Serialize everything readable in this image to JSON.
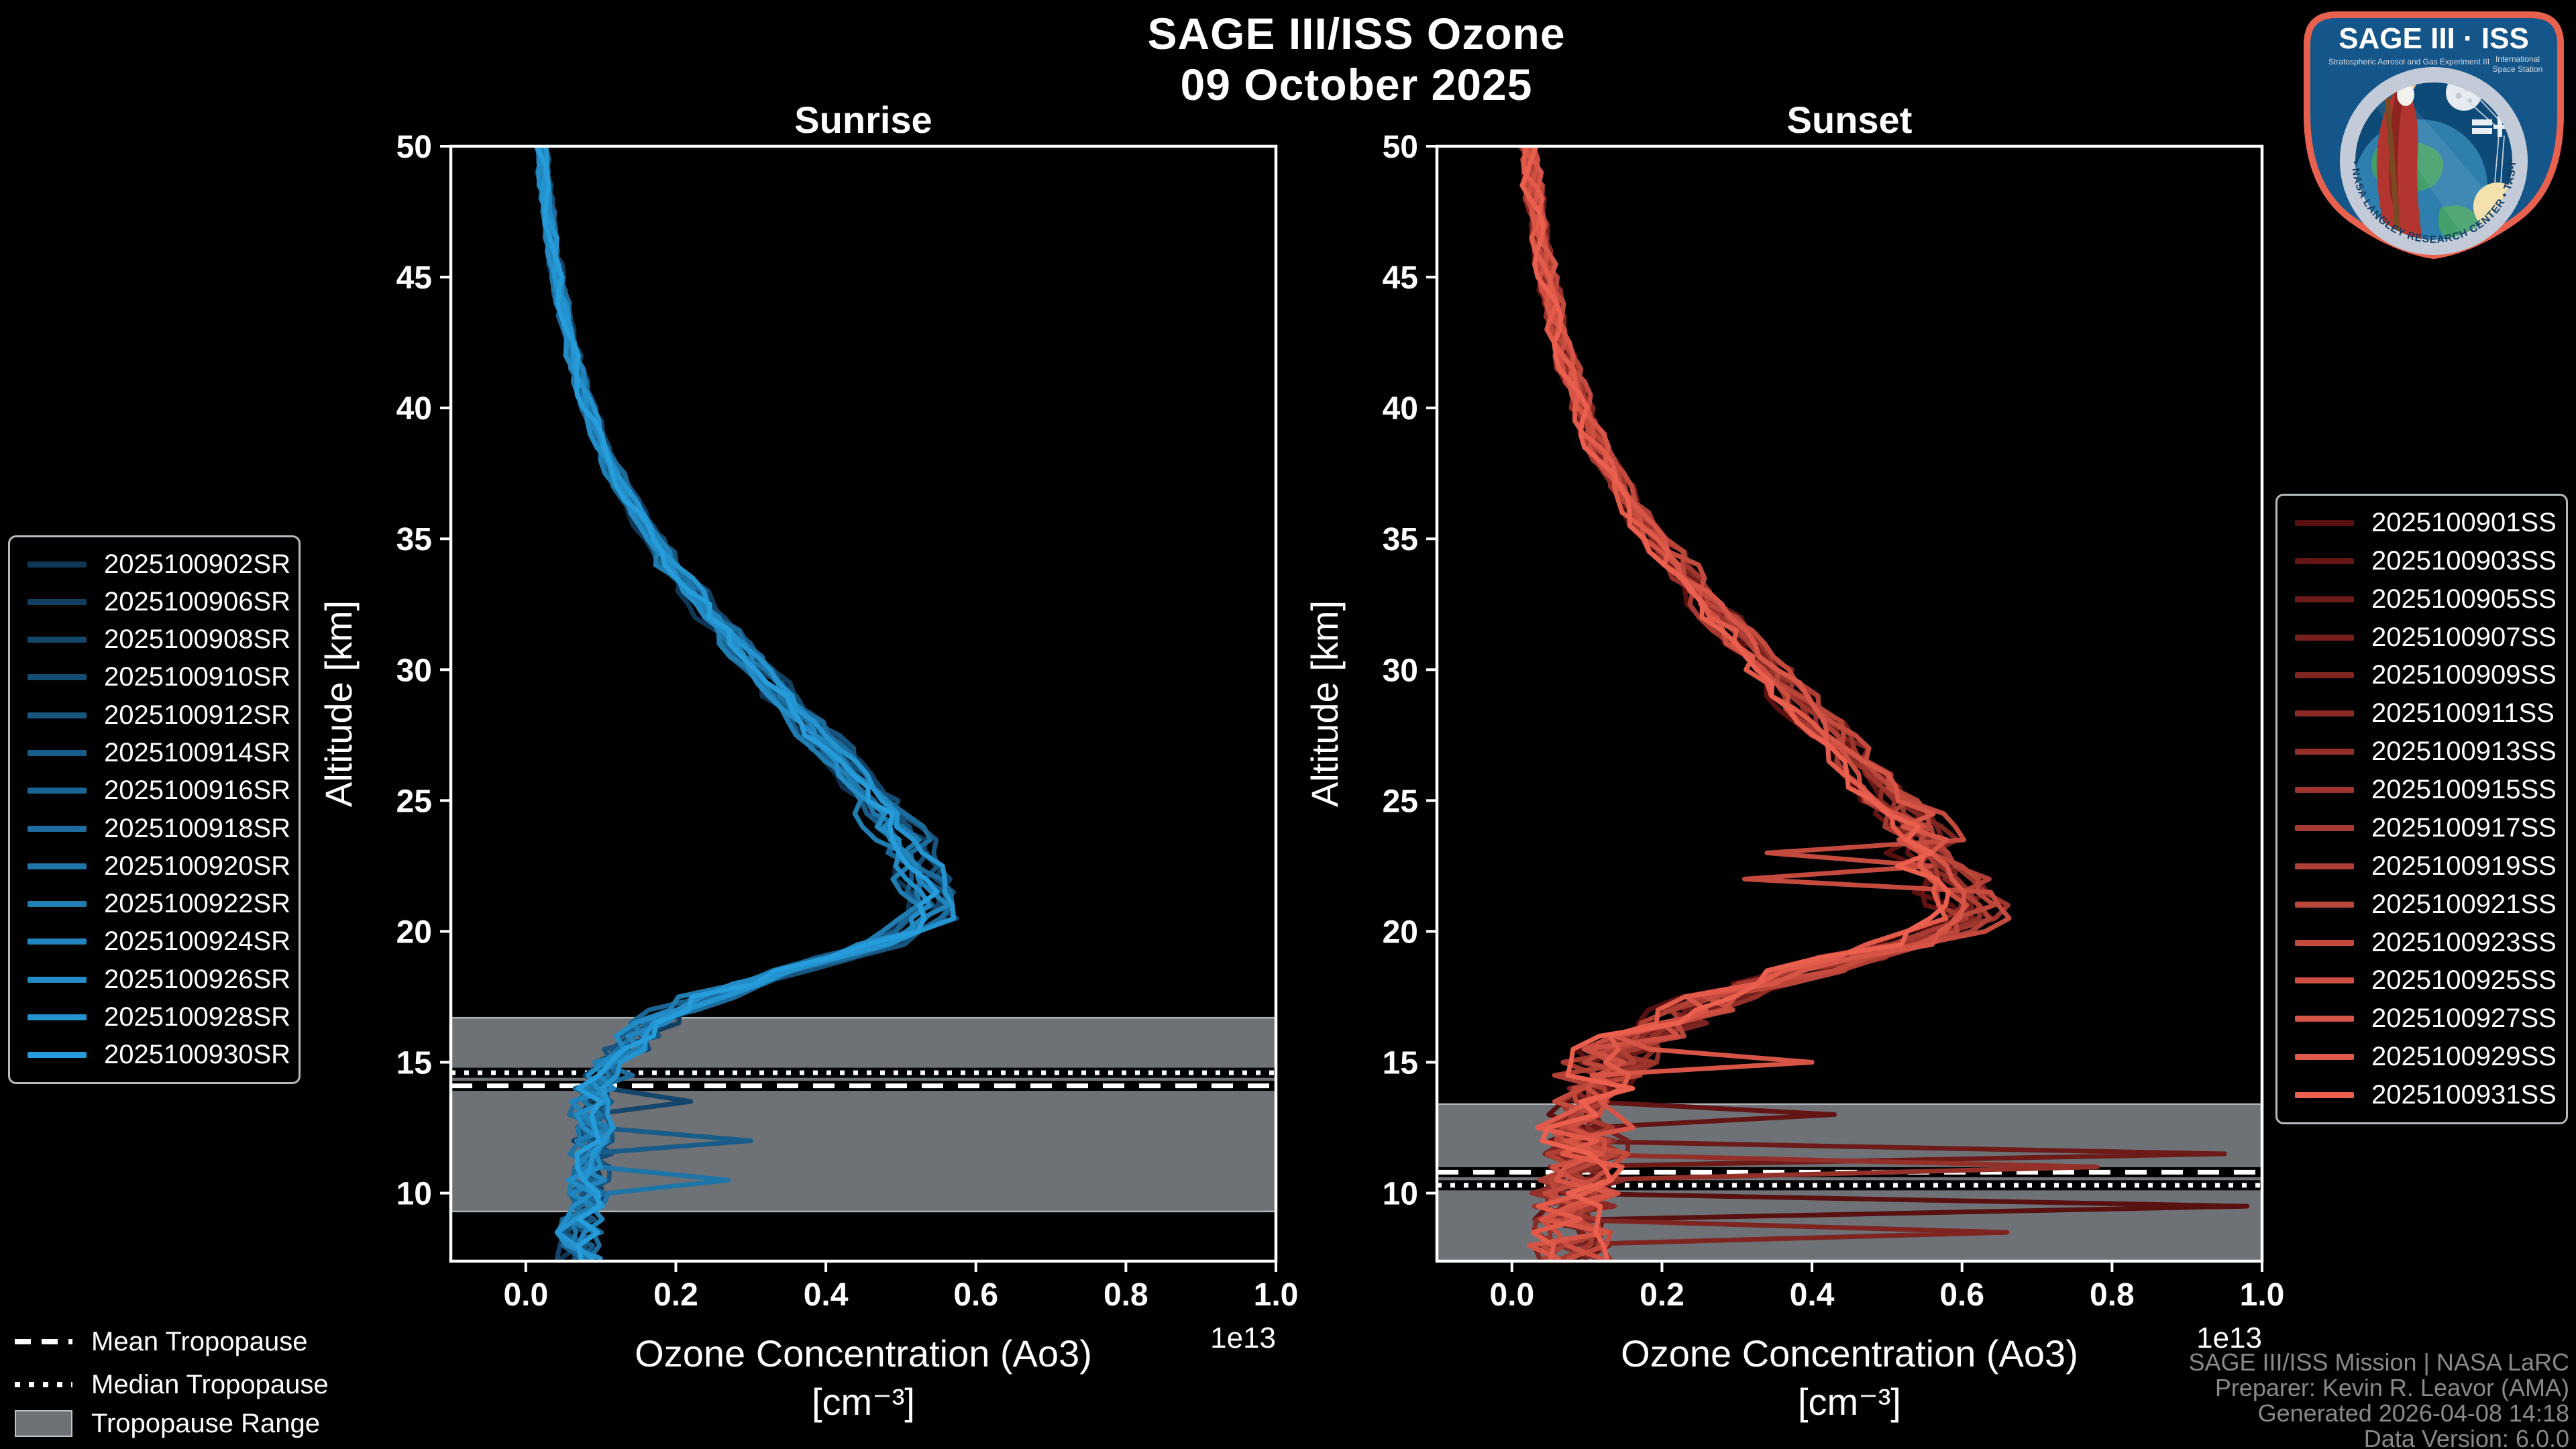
{
  "figure_title": {
    "line1": "SAGE III/ISS Ozone",
    "line2": "09 October 2025"
  },
  "axes": {
    "x_label": "Ozone Concentration (Ao3)",
    "x_unit": "[cm⁻³]",
    "offset_label": "1e13",
    "y_label": "Altitude [km]",
    "x_ticks": [
      0.0,
      0.2,
      0.4,
      0.6,
      0.8,
      1.0
    ],
    "y_ticks": [
      10,
      15,
      20,
      25,
      30,
      35,
      40,
      45,
      50
    ]
  },
  "tropopause_legend": {
    "mean": "Mean Tropopause",
    "median": "Median Tropopause",
    "range": "Tropopause Range"
  },
  "attribution": {
    "line1": "SAGE III/ISS Mission | NASA LaRC",
    "line2": "Preparer: Kevin R. Leavor (AMA)",
    "line3": "Generated 2026-04-08 14:18",
    "line4": "Data Version: 6.0.0"
  },
  "logo": {
    "title": "SAGE III · ISS",
    "subtitle_left": "Stratospheric Aerosol and Gas Experiment III",
    "subtitle_right_1": "International",
    "subtitle_right_2": "Space Station",
    "ring_text": "BALL • NASA LANGLEY RESEARCH CENTER • TAS-I • ESA",
    "border_color": "#e8614e",
    "background_color": "#15568a"
  },
  "style": {
    "background": "#000000",
    "text_color": "#ffffff",
    "band_color": "#6e7176",
    "band_edge_color": "#aeb2b8",
    "spine_color": "#ffffff"
  },
  "chart_data": [
    {
      "type": "line",
      "title": "Sunrise",
      "xlabel": "Ozone Concentration (Ao3) [cm⁻³]",
      "ylabel": "Altitude [km]",
      "x_offset_factor": "1e13",
      "xlim": [
        -0.1,
        1.0
      ],
      "ylim": [
        7.4,
        50
      ],
      "grid": false,
      "legend_position": "outside-left",
      "series": [
        {
          "name": "2025100902SR",
          "color": "#103656"
        },
        {
          "name": "2025100906SR",
          "color": "#123e60"
        },
        {
          "name": "2025100908SR",
          "color": "#13466a"
        },
        {
          "name": "2025100910SR",
          "color": "#154e74"
        },
        {
          "name": "2025100912SR",
          "color": "#17557f"
        },
        {
          "name": "2025100914SR",
          "color": "#185d89"
        },
        {
          "name": "2025100916SR",
          "color": "#1a6593"
        },
        {
          "name": "2025100918SR",
          "color": "#1c6d9d"
        },
        {
          "name": "2025100920SR",
          "color": "#1e75a7"
        },
        {
          "name": "2025100922SR",
          "color": "#1f7db1"
        },
        {
          "name": "2025100924SR",
          "color": "#2184bc"
        },
        {
          "name": "2025100926SR",
          "color": "#238cc6"
        },
        {
          "name": "2025100928SR",
          "color": "#2494d0"
        },
        {
          "name": "2025100930SR",
          "color": "#269cda"
        }
      ],
      "base_profile": {
        "altitude_km": [
          50,
          48,
          46,
          44,
          42,
          40,
          38,
          36,
          34,
          32,
          30,
          28,
          26,
          25,
          24,
          23,
          22,
          21.5,
          21,
          20.5,
          20,
          19.5,
          19,
          18.5,
          18,
          17.5,
          17,
          16.5,
          16,
          15.5,
          15,
          14.5,
          14,
          13.5,
          13,
          12.5,
          12,
          11.5,
          11,
          10.5,
          10,
          9.5,
          9,
          8.5,
          8
        ],
        "ozone_1e13": [
          0.02,
          0.027,
          0.036,
          0.048,
          0.063,
          0.083,
          0.11,
          0.148,
          0.195,
          0.25,
          0.31,
          0.375,
          0.44,
          0.468,
          0.495,
          0.515,
          0.53,
          0.54,
          0.545,
          0.54,
          0.515,
          0.47,
          0.41,
          0.35,
          0.295,
          0.245,
          0.205,
          0.175,
          0.15,
          0.13,
          0.115,
          0.105,
          0.098,
          0.092,
          0.088,
          0.09,
          0.092,
          0.088,
          0.085,
          0.082,
          0.08,
          0.077,
          0.075,
          0.072,
          0.07
        ]
      },
      "peak": {
        "altitude_km": 21,
        "ozone_1e13": 0.55
      },
      "noise_1e13": {
        "above_35km": 0.003,
        "km_25_35": 0.009,
        "km_18_25": 0.018,
        "below_18km": 0.028
      },
      "wiggle_1e13": 0.006,
      "outliers": [
        {
          "series": 2,
          "altitude_km": 13.5,
          "value_1e13": 0.22
        },
        {
          "series": 5,
          "altitude_km": 12.0,
          "value_1e13": 0.3
        },
        {
          "series": 8,
          "altitude_km": 10.5,
          "value_1e13": 0.27
        }
      ],
      "tropopause": {
        "mean_km": 14.1,
        "median_km": 14.6,
        "range_km": [
          9.3,
          16.7
        ]
      },
      "seed": 7
    },
    {
      "type": "line",
      "title": "Sunset",
      "xlabel": "Ozone Concentration (Ao3) [cm⁻³]",
      "ylabel": "Altitude [km]",
      "x_offset_factor": "1e13",
      "xlim": [
        -0.1,
        1.0
      ],
      "ylim": [
        7.4,
        50
      ],
      "grid": false,
      "legend_position": "outside-right",
      "series": [
        {
          "name": "2025100901SS",
          "color": "#581010"
        },
        {
          "name": "2025100903SS",
          "color": "#621514"
        },
        {
          "name": "2025100905SS",
          "color": "#6c1b18"
        },
        {
          "name": "2025100907SS",
          "color": "#75201c"
        },
        {
          "name": "2025100909SS",
          "color": "#7f2521"
        },
        {
          "name": "2025100911SS",
          "color": "#892a25"
        },
        {
          "name": "2025100913SS",
          "color": "#933029"
        },
        {
          "name": "2025100915SS",
          "color": "#9d352d"
        },
        {
          "name": "2025100917SS",
          "color": "#a63a31"
        },
        {
          "name": "2025100919SS",
          "color": "#b03f35"
        },
        {
          "name": "2025100921SS",
          "color": "#ba4539"
        },
        {
          "name": "2025100923SS",
          "color": "#c44a3e"
        },
        {
          "name": "2025100925SS",
          "color": "#ce4f42"
        },
        {
          "name": "2025100927SS",
          "color": "#d75546"
        },
        {
          "name": "2025100929SS",
          "color": "#e15a4a"
        },
        {
          "name": "2025100931SS",
          "color": "#eb5f4e"
        }
      ],
      "base_profile": {
        "altitude_km": [
          50,
          48,
          46,
          44,
          42,
          40,
          38,
          36,
          34,
          32,
          30,
          28,
          26,
          25,
          24,
          23,
          22,
          21.5,
          21,
          20.5,
          20,
          19.5,
          19,
          18.5,
          18,
          17.5,
          17,
          16.5,
          16,
          15.5,
          15,
          14.5,
          14,
          13.5,
          13,
          12.5,
          12,
          11.5,
          11,
          10.5,
          10,
          9.5,
          9,
          8.5,
          8
        ],
        "ozone_1e13": [
          0.022,
          0.03,
          0.04,
          0.053,
          0.07,
          0.092,
          0.122,
          0.163,
          0.215,
          0.275,
          0.34,
          0.405,
          0.47,
          0.5,
          0.53,
          0.555,
          0.575,
          0.588,
          0.598,
          0.6,
          0.57,
          0.52,
          0.455,
          0.39,
          0.33,
          0.28,
          0.235,
          0.2,
          0.17,
          0.148,
          0.13,
          0.115,
          0.105,
          0.098,
          0.095,
          0.095,
          0.095,
          0.092,
          0.09,
          0.088,
          0.085,
          0.082,
          0.08,
          0.078,
          0.075
        ]
      },
      "peak": {
        "altitude_km": 20.5,
        "ozone_1e13": 0.63
      },
      "noise_1e13": {
        "above_35km": 0.004,
        "km_25_35": 0.012,
        "km_18_25": 0.03,
        "below_18km": 0.055
      },
      "wiggle_1e13": 0.01,
      "outliers": [
        {
          "series": 0,
          "altitude_km": 9.4,
          "value_1e13": 0.98
        },
        {
          "series": 1,
          "altitude_km": 12.9,
          "value_1e13": 0.43
        },
        {
          "series": 2,
          "altitude_km": 11.5,
          "value_1e13": 0.95
        },
        {
          "series": 4,
          "altitude_km": 8.3,
          "value_1e13": 0.66
        },
        {
          "series": 6,
          "altitude_km": 10.8,
          "value_1e13": 0.78
        },
        {
          "series": 11,
          "altitude_km": 23.0,
          "value_1e13": 0.34
        },
        {
          "series": 11,
          "altitude_km": 22.0,
          "value_1e13": 0.31
        },
        {
          "series": 13,
          "altitude_km": 14.8,
          "value_1e13": 0.4
        }
      ],
      "tropopause": {
        "mean_km": 10.8,
        "median_km": 10.3,
        "range_km": [
          7.4,
          13.4
        ]
      },
      "seed": 13
    }
  ]
}
